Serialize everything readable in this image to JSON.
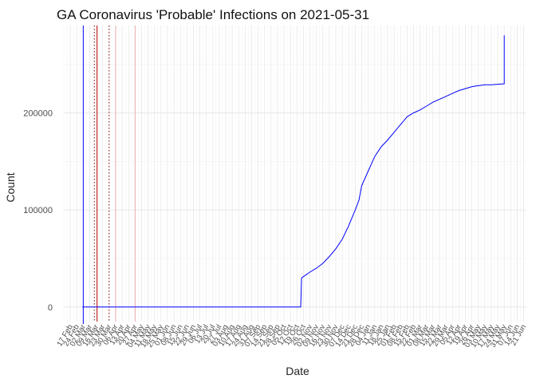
{
  "chart_data": {
    "type": "line",
    "title": "GA Coronavirus 'Probable' Infections on 2021-05-31",
    "xlabel": "Date",
    "ylabel": "Count",
    "ylim": [
      -15000,
      290000
    ],
    "xlim": [
      "2020-02-10",
      "2021-06-24"
    ],
    "y_ticks": [
      0,
      100000,
      200000
    ],
    "y_tick_labels": [
      "0",
      "100000",
      "200000"
    ],
    "x_ticks": [
      "2020-02-17",
      "2020-02-24",
      "2020-03-02",
      "2020-03-09",
      "2020-03-16",
      "2020-03-23",
      "2020-03-30",
      "2020-04-06",
      "2020-04-13",
      "2020-04-20",
      "2020-04-27",
      "2020-05-04",
      "2020-05-11",
      "2020-05-18",
      "2020-05-25",
      "2020-06-01",
      "2020-06-08",
      "2020-06-15",
      "2020-06-22",
      "2020-06-29",
      "2020-07-06",
      "2020-07-13",
      "2020-07-20",
      "2020-07-27",
      "2020-08-03",
      "2020-08-10",
      "2020-08-17",
      "2020-08-24",
      "2020-08-31",
      "2020-09-07",
      "2020-09-14",
      "2020-09-21",
      "2020-09-28",
      "2020-10-05",
      "2020-10-12",
      "2020-10-19",
      "2020-10-26",
      "2020-11-02",
      "2020-11-09",
      "2020-11-16",
      "2020-11-23",
      "2020-11-30",
      "2020-12-07",
      "2020-12-14",
      "2020-12-21",
      "2020-12-28",
      "2021-01-04",
      "2021-01-11",
      "2021-01-18",
      "2021-01-25",
      "2021-02-01",
      "2021-02-08",
      "2021-02-15",
      "2021-02-22",
      "2021-03-01",
      "2021-03-08",
      "2021-03-15",
      "2021-03-22",
      "2021-03-29",
      "2021-04-05",
      "2021-04-12",
      "2021-04-19",
      "2021-04-26",
      "2021-05-03",
      "2021-05-10",
      "2021-05-17",
      "2021-05-24",
      "2021-05-31",
      "2021-06-07",
      "2021-06-14",
      "2021-06-21"
    ],
    "x_tick_labels": [
      "17 Feb",
      "24 Feb",
      "02 Mar",
      "09 Mar",
      "16 Mar",
      "23 Mar",
      "30 Mar",
      "06 Apr",
      "13 Apr",
      "20 Apr",
      "27 Apr",
      "04 May",
      "11 May",
      "18 May",
      "25 May",
      "01 Jun",
      "08 Jun",
      "15 Jun",
      "22 Jun",
      "29 Jun",
      "06 Jul",
      "13 Jul",
      "20 Jul",
      "27 Jul",
      "03 Aug",
      "10 Aug",
      "17 Aug",
      "24 Aug",
      "31 Aug",
      "07 Sep",
      "14 Sep",
      "21 Sep",
      "28 Sep",
      "05 Oct",
      "12 Oct",
      "19 Oct",
      "26 Oct",
      "02 Nov",
      "09 Nov",
      "16 Nov",
      "23 Nov",
      "30 Nov",
      "07 Dec",
      "14 Dec",
      "21 Dec",
      "28 Dec",
      "04 Jan",
      "11 Jan",
      "18 Jan",
      "25 Jan",
      "01 Feb",
      "08 Feb",
      "15 Feb",
      "22 Feb",
      "01 Mar",
      "08 Mar",
      "15 Mar",
      "22 Mar",
      "29 Mar",
      "05 Apr",
      "12 Apr",
      "19 Apr",
      "26 Apr",
      "03 May",
      "10 May",
      "17 May",
      "24 May",
      "31 May",
      "07 Jun",
      "14 Jun",
      "21 Jun"
    ],
    "grid": true,
    "series": [
      {
        "color": "#0000FF",
        "x": [
          "2020-03-01",
          "2020-10-23",
          "2020-10-24",
          "2020-10-27",
          "2020-11-02",
          "2020-11-09",
          "2020-11-16",
          "2020-11-23",
          "2020-11-30",
          "2020-12-07",
          "2020-12-14",
          "2020-12-21",
          "2020-12-25",
          "2020-12-28",
          "2021-01-04",
          "2021-01-11",
          "2021-01-18",
          "2021-01-25",
          "2021-02-01",
          "2021-02-08",
          "2021-02-15",
          "2021-02-22",
          "2021-03-01",
          "2021-03-08",
          "2021-03-15",
          "2021-03-22",
          "2021-03-29",
          "2021-04-05",
          "2021-04-12",
          "2021-04-19",
          "2021-04-26",
          "2021-05-03",
          "2021-05-10",
          "2021-05-17",
          "2021-05-24",
          "2021-05-31",
          "2021-05-31"
        ],
        "y": [
          0,
          0,
          30000,
          32000,
          36000,
          40000,
          45000,
          52000,
          60000,
          70000,
          84000,
          100000,
          110000,
          125000,
          140000,
          155000,
          165000,
          172000,
          180000,
          188000,
          196000,
          200000,
          203000,
          207000,
          211000,
          214000,
          217000,
          220000,
          223000,
          225000,
          227000,
          228000,
          229000,
          229000,
          229500,
          230000,
          280000
        ]
      }
    ],
    "reference_lines": [
      {
        "x": "2020-03-02",
        "color": "#0000FF",
        "style": "solid"
      },
      {
        "x": "2020-03-14",
        "color": "#8B0000",
        "style": "dotted"
      },
      {
        "x": "2020-03-17",
        "color": "#C00000",
        "style": "solid"
      },
      {
        "x": "2020-03-30",
        "color": "#8B0000",
        "style": "dotted"
      },
      {
        "x": "2020-04-06",
        "color": "#E8A8A8",
        "style": "solid"
      },
      {
        "x": "2020-04-27",
        "color": "#E8A8A8",
        "style": "solid"
      }
    ]
  }
}
